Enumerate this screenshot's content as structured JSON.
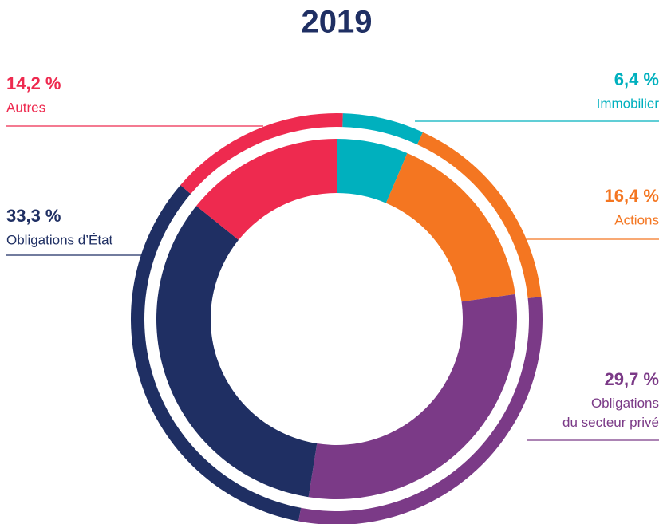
{
  "chart_data": {
    "type": "donut",
    "title": "2019",
    "categories": [
      "Immobilier",
      "Actions",
      "Obligations du secteur privé",
      "Obligations d’État",
      "Autres"
    ],
    "values": [
      6.4,
      16.4,
      29.7,
      33.3,
      14.2
    ],
    "value_labels": [
      "6,4 %",
      "16,4 %",
      "29,7 %",
      "33,3 %",
      "14,2 %"
    ],
    "colors": [
      "#00b0be",
      "#f47621",
      "#7b3a87",
      "#1f2f63",
      "#ee2a4f"
    ]
  }
}
